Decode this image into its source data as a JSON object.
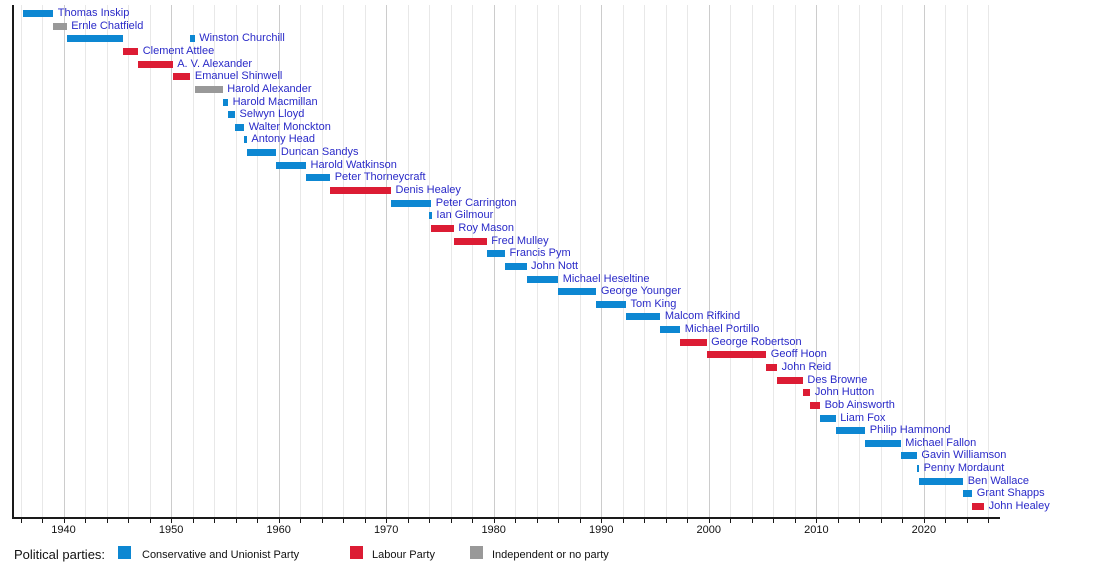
{
  "chart_data": {
    "type": "timeline",
    "description": "Gantt-style timeline of officeholders colored by political party",
    "x_axis": {
      "min_year": 1936,
      "max_year": 2026,
      "gridline_interval_years": 2,
      "tick_interval_years": 2,
      "label_interval_years": 10,
      "tick_labels": [
        "1940",
        "1950",
        "1960",
        "1970",
        "1980",
        "1990",
        "2000",
        "2010",
        "2020"
      ],
      "label_years": [
        1940,
        1950,
        1960,
        1970,
        1980,
        1990,
        2000,
        2010,
        2020
      ]
    },
    "ministers": [
      {
        "name": "Thomas Inskip",
        "party": "con",
        "terms": [
          [
            1936.2,
            1939.05
          ]
        ]
      },
      {
        "name": "Ernle Chatfield",
        "party": "ind",
        "terms": [
          [
            1939.05,
            1940.3
          ]
        ]
      },
      {
        "name": "Winston Churchill",
        "party": "con",
        "terms": [
          [
            1940.35,
            1945.55
          ],
          [
            1951.8,
            1952.2
          ]
        ]
      },
      {
        "name": "Clement Attlee",
        "party": "lab",
        "terms": [
          [
            1945.55,
            1946.95
          ]
        ]
      },
      {
        "name": "A. V. Alexander",
        "party": "lab",
        "terms": [
          [
            1946.95,
            1950.15
          ]
        ]
      },
      {
        "name": "Emanuel Shinwell",
        "party": "lab",
        "terms": [
          [
            1950.15,
            1951.8
          ]
        ]
      },
      {
        "name": "Harold Alexander",
        "party": "ind",
        "terms": [
          [
            1952.2,
            1954.8
          ]
        ]
      },
      {
        "name": "Harold Macmillan",
        "party": "con",
        "terms": [
          [
            1954.8,
            1955.3
          ]
        ]
      },
      {
        "name": "Selwyn Lloyd",
        "party": "con",
        "terms": [
          [
            1955.3,
            1955.95
          ]
        ]
      },
      {
        "name": "Walter Monckton",
        "party": "con",
        "terms": [
          [
            1955.95,
            1956.8
          ]
        ]
      },
      {
        "name": "Antony Head",
        "party": "con",
        "terms": [
          [
            1956.8,
            1957.05
          ]
        ]
      },
      {
        "name": "Duncan Sandys",
        "party": "con",
        "terms": [
          [
            1957.05,
            1959.8
          ]
        ]
      },
      {
        "name": "Harold Watkinson",
        "party": "con",
        "terms": [
          [
            1959.8,
            1962.55
          ]
        ]
      },
      {
        "name": "Peter Thorneycraft",
        "party": "con",
        "terms": [
          [
            1962.55,
            1964.8
          ]
        ]
      },
      {
        "name": "Denis Healey",
        "party": "lab",
        "terms": [
          [
            1964.8,
            1970.45
          ]
        ]
      },
      {
        "name": "Peter Carrington",
        "party": "con",
        "terms": [
          [
            1970.45,
            1974.2
          ]
        ]
      },
      {
        "name": "Ian Gilmour",
        "party": "con",
        "terms": [
          [
            1974.0,
            1974.25
          ]
        ]
      },
      {
        "name": "Roy Mason",
        "party": "lab",
        "terms": [
          [
            1974.2,
            1976.3
          ]
        ]
      },
      {
        "name": "Fred Mulley",
        "party": "lab",
        "terms": [
          [
            1976.3,
            1979.35
          ]
        ]
      },
      {
        "name": "Francis Pym",
        "party": "con",
        "terms": [
          [
            1979.35,
            1981.05
          ]
        ]
      },
      {
        "name": "John Nott",
        "party": "con",
        "terms": [
          [
            1981.05,
            1983.05
          ]
        ]
      },
      {
        "name": "Michael Heseltine",
        "party": "con",
        "terms": [
          [
            1983.05,
            1986.0
          ]
        ]
      },
      {
        "name": "George Younger",
        "party": "con",
        "terms": [
          [
            1986.0,
            1989.55
          ]
        ]
      },
      {
        "name": "Tom King",
        "party": "con",
        "terms": [
          [
            1989.55,
            1992.3
          ]
        ]
      },
      {
        "name": "Malcom Rifkind",
        "party": "con",
        "terms": [
          [
            1992.3,
            1995.5
          ]
        ]
      },
      {
        "name": "Michael Portillo",
        "party": "con",
        "terms": [
          [
            1995.5,
            1997.35
          ]
        ]
      },
      {
        "name": "George Robertson",
        "party": "lab",
        "terms": [
          [
            1997.35,
            1999.8
          ]
        ]
      },
      {
        "name": "Geoff Hoon",
        "party": "lab",
        "terms": [
          [
            1999.8,
            2005.35
          ]
        ]
      },
      {
        "name": "John Reid",
        "party": "lab",
        "terms": [
          [
            2005.35,
            2006.35
          ]
        ]
      },
      {
        "name": "Des Browne",
        "party": "lab",
        "terms": [
          [
            2006.35,
            2008.75
          ]
        ]
      },
      {
        "name": "John Hutton",
        "party": "lab",
        "terms": [
          [
            2008.75,
            2009.45
          ]
        ]
      },
      {
        "name": "Bob Ainsworth",
        "party": "lab",
        "terms": [
          [
            2009.45,
            2010.35
          ]
        ]
      },
      {
        "name": "Liam Fox",
        "party": "con",
        "terms": [
          [
            2010.35,
            2011.8
          ]
        ]
      },
      {
        "name": "Philip Hammond",
        "party": "con",
        "terms": [
          [
            2011.8,
            2014.55
          ]
        ]
      },
      {
        "name": "Michael Fallon",
        "party": "con",
        "terms": [
          [
            2014.55,
            2017.85
          ]
        ]
      },
      {
        "name": "Gavin Williamson",
        "party": "con",
        "terms": [
          [
            2017.85,
            2019.35
          ]
        ]
      },
      {
        "name": "Penny Mordaunt",
        "party": "con",
        "terms": [
          [
            2019.35,
            2019.55
          ]
        ]
      },
      {
        "name": "Ben Wallace",
        "party": "con",
        "terms": [
          [
            2019.55,
            2023.65
          ]
        ]
      },
      {
        "name": "Grant Shapps",
        "party": "con",
        "terms": [
          [
            2023.65,
            2024.5
          ]
        ]
      },
      {
        "name": "John Healey",
        "party": "lab",
        "terms": [
          [
            2024.5,
            2025.6
          ]
        ]
      }
    ]
  },
  "legend": {
    "title": "Political parties:",
    "items": [
      {
        "label": "Conservative and Unionist Party",
        "party": "con"
      },
      {
        "label": "Labour Party",
        "party": "lab"
      },
      {
        "label": "Independent or no party",
        "party": "ind"
      }
    ]
  },
  "colors": {
    "con": "#0d87d2",
    "lab": "#dc1c34",
    "ind": "#999999",
    "name_label": "#2a2ac8",
    "axis": "#1a1a1a",
    "grid_minor": "#e8e8e8",
    "grid_major": "#cccccc"
  }
}
